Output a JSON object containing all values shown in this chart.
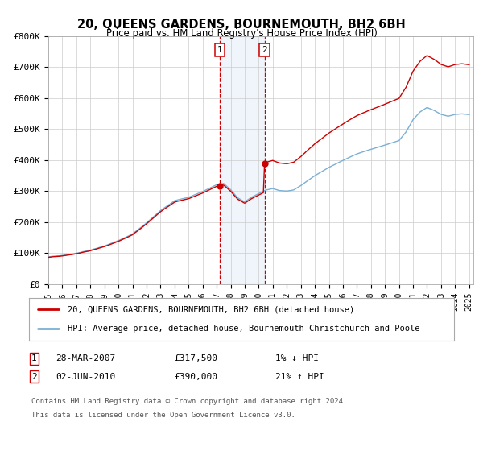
{
  "title": "20, QUEENS GARDENS, BOURNEMOUTH, BH2 6BH",
  "subtitle": "Price paid vs. HM Land Registry's House Price Index (HPI)",
  "legend_line1": "20, QUEENS GARDENS, BOURNEMOUTH, BH2 6BH (detached house)",
  "legend_line2": "HPI: Average price, detached house, Bournemouth Christchurch and Poole",
  "hpi_color": "#7BAFD4",
  "price_color": "#cc0000",
  "sale1_date": "28-MAR-2007",
  "sale1_price": "£317,500",
  "sale1_hpi": "1% ↓ HPI",
  "sale2_date": "02-JUN-2010",
  "sale2_price": "£390,000",
  "sale2_hpi": "21% ↑ HPI",
  "footnote1": "Contains HM Land Registry data © Crown copyright and database right 2024.",
  "footnote2": "This data is licensed under the Open Government Licence v3.0.",
  "ylim": [
    0,
    800000
  ],
  "yticks": [
    0,
    100000,
    200000,
    300000,
    400000,
    500000,
    600000,
    700000,
    800000
  ],
  "ytick_labels": [
    "£0",
    "£100K",
    "£200K",
    "£300K",
    "£400K",
    "£500K",
    "£600K",
    "£700K",
    "£800K"
  ],
  "sale1_year": 2007.236,
  "sale2_year": 2010.414,
  "sale1_price_val": 317500,
  "sale2_price_val": 390000
}
